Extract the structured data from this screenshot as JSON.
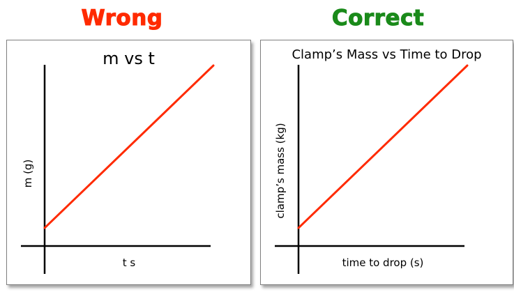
{
  "headings": {
    "wrong": "Wrong",
    "correct": "Correct"
  },
  "colors": {
    "wrong": "#ff2a00",
    "correct": "#1a8a1a",
    "line": "#ff2a00",
    "axis": "#000000"
  },
  "panels": {
    "left": {
      "title": "m vs t",
      "xlabel": "t s",
      "ylabel": "m (g)"
    },
    "right": {
      "title": "Clamp’s Mass vs Time to Drop",
      "xlabel": "time to drop (s)",
      "ylabel": "clamp’s mass (kg)"
    }
  },
  "chart_data": [
    {
      "type": "line",
      "title": "m vs t",
      "xlabel": "t s",
      "ylabel": "m (g)",
      "grid": false,
      "series": [
        {
          "x": [
            0,
            1
          ],
          "y": [
            0.1,
            1.0
          ]
        }
      ]
    },
    {
      "type": "line",
      "title": "Clamp’s Mass vs Time to Drop",
      "xlabel": "time to drop (s)",
      "ylabel": "clamp’s mass (kg)",
      "grid": false,
      "series": [
        {
          "x": [
            0,
            1
          ],
          "y": [
            0.1,
            1.0
          ]
        }
      ]
    }
  ]
}
